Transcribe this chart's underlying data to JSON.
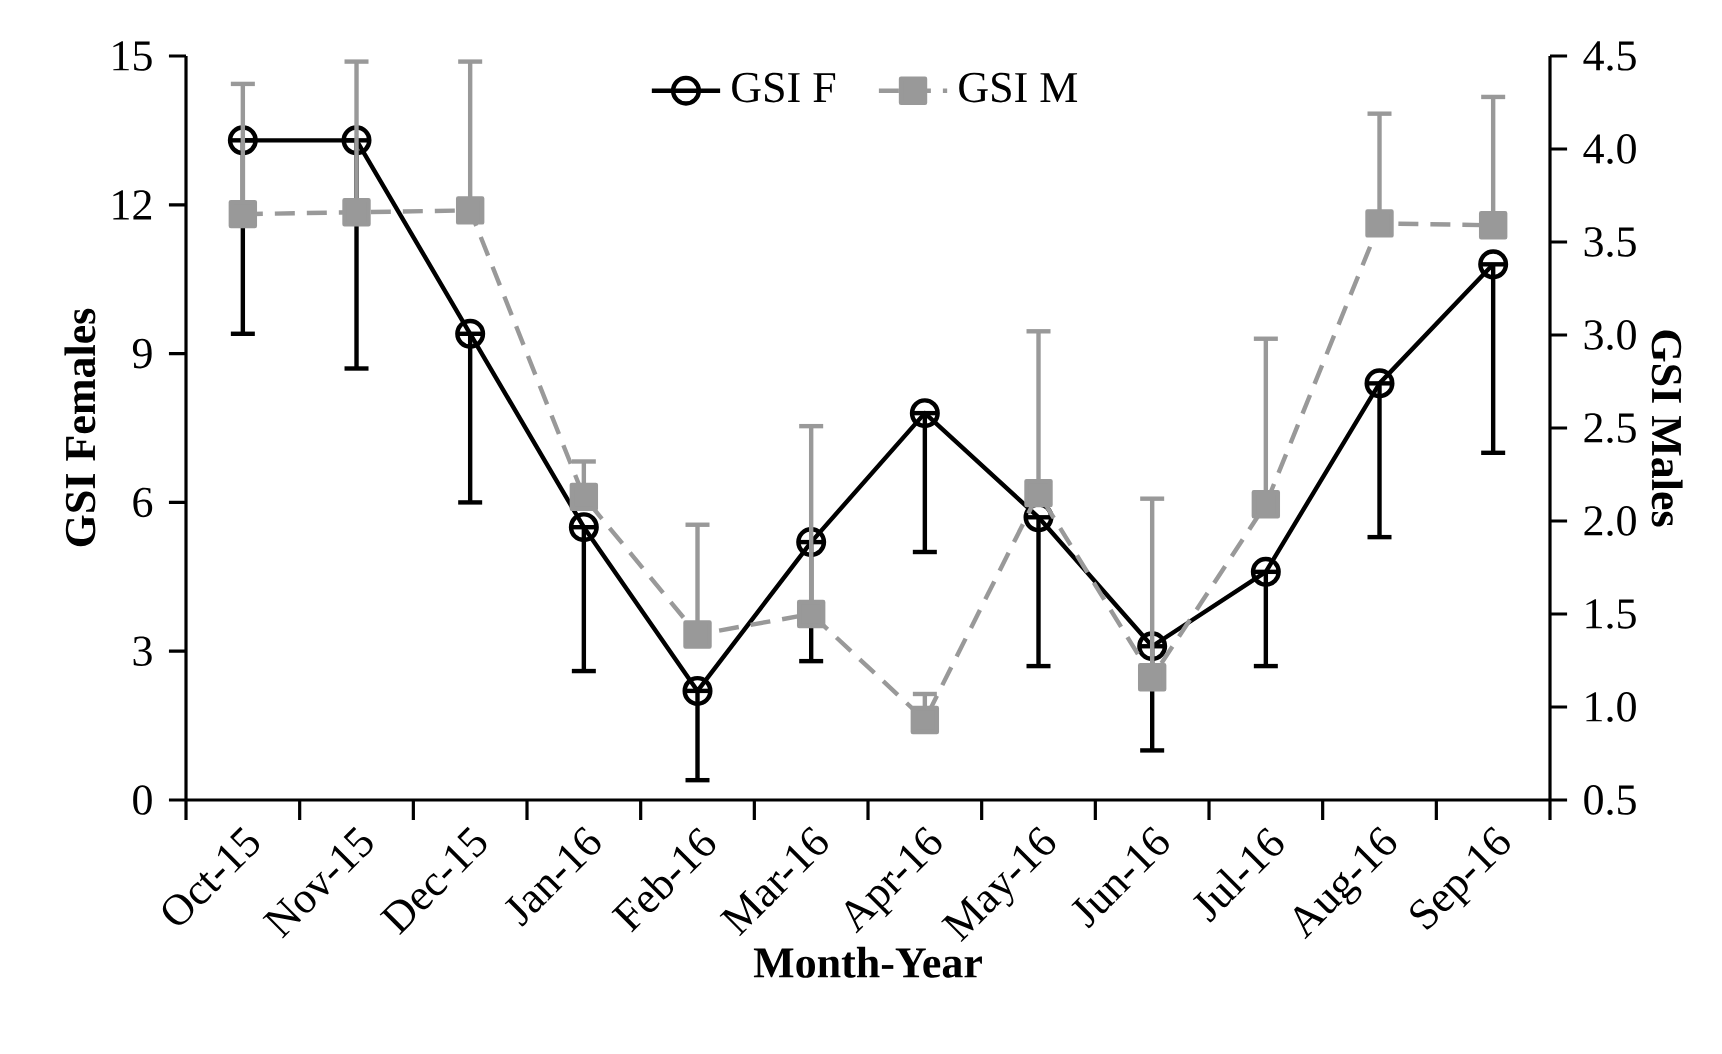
{
  "chart_data": {
    "type": "line",
    "xlabel": "Month-Year",
    "ylabel": "GSI Females",
    "y2label": "GSI Males",
    "categories": [
      "Oct-15",
      "Nov-15",
      "Dec-15",
      "Jan-16",
      "Feb-16",
      "Mar-16",
      "Apr-16",
      "May-16",
      "Jun-16",
      "Jul-16",
      "Aug-16",
      "Sep-16"
    ],
    "ylim": [
      0,
      15
    ],
    "yticks": [
      0,
      3,
      6,
      9,
      12,
      15
    ],
    "y2lim": [
      0.5,
      4.5
    ],
    "y2ticks": [
      0.5,
      {
        "value": 1,
        "label": "1.0"
      },
      1.5,
      {
        "value": 2,
        "label": "2.0"
      },
      2.5,
      {
        "value": 3,
        "label": "3.0"
      },
      3.5,
      {
        "value": 4,
        "label": "4.0"
      },
      4.5
    ],
    "legend": "top",
    "grid": false,
    "series": [
      {
        "name": "GSI F",
        "color": "#000000",
        "marker": "circle",
        "line_style": "solid",
        "values": [
          13.3,
          13.3,
          9.4,
          5.5,
          2.2,
          5.2,
          7.8,
          5.7,
          3.1,
          4.6,
          8.4,
          10.8
        ],
        "errors": [
          [
            9.4,
            13.3
          ],
          [
            8.7,
            13.3
          ],
          [
            6.0,
            9.4
          ],
          [
            2.6,
            5.5
          ],
          [
            0.4,
            2.2
          ],
          [
            2.8,
            5.2
          ],
          [
            5.0,
            7.8
          ],
          [
            2.7,
            5.7
          ],
          [
            1.0,
            3.1
          ],
          [
            2.7,
            4.6
          ],
          [
            5.3,
            8.4
          ],
          [
            7.0,
            10.8
          ]
        ]
      },
      {
        "name": "GSI M",
        "color": "#999999",
        "marker": "square",
        "line_style": "dashed",
        "axis": "y2",
        "values": [
          3.65,
          3.66,
          3.67,
          2.13,
          1.39,
          1.5,
          0.93,
          2.15,
          1.16,
          2.09,
          3.6,
          3.59
        ],
        "errors": [
          [
            3.65,
            4.35
          ],
          [
            3.66,
            4.47
          ],
          [
            3.67,
            4.47
          ],
          [
            2.13,
            2.32
          ],
          [
            1.39,
            1.98
          ],
          [
            1.5,
            2.51
          ],
          [
            0.93,
            1.07
          ],
          [
            2.15,
            3.02
          ],
          [
            1.16,
            2.12
          ],
          [
            2.09,
            2.98
          ],
          [
            3.6,
            4.19
          ],
          [
            3.59,
            4.28
          ]
        ]
      }
    ]
  }
}
